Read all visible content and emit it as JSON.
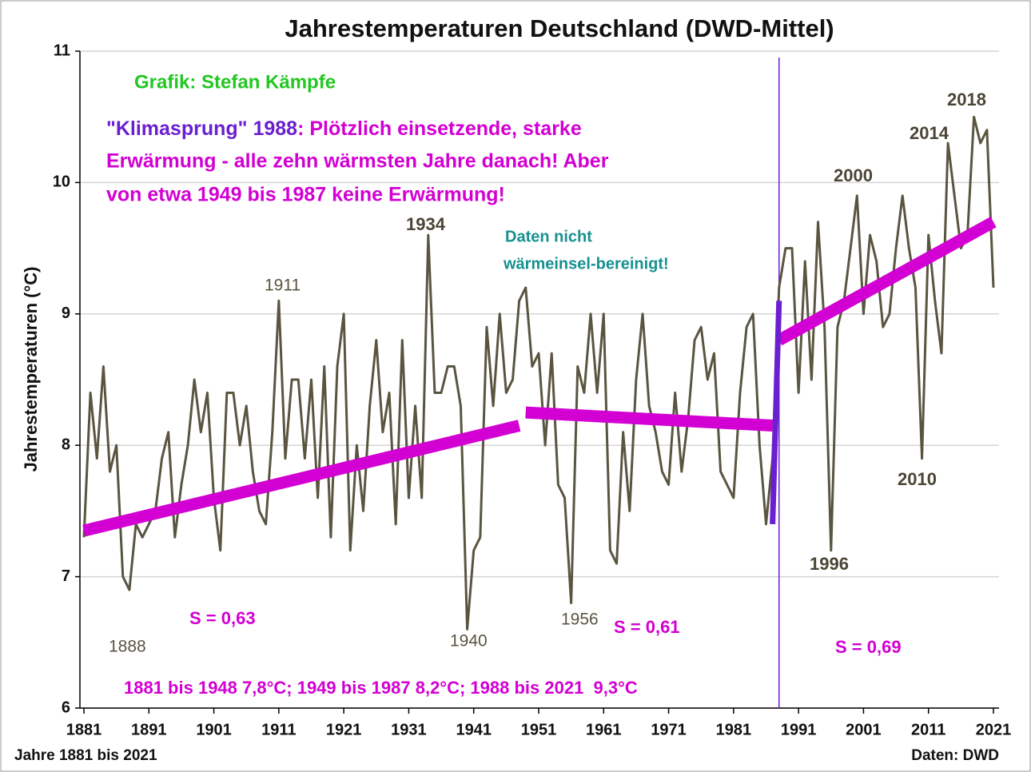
{
  "chart_data": {
    "type": "line",
    "title": "Jahrestemperaturen Deutschland (DWD-Mittel)",
    "ylabel": "Jahrestemperaturen (°C)",
    "xlabel": "Jahre 1881 bis 2021",
    "source": "Daten: DWD",
    "xlim": [
      1881,
      2021
    ],
    "ylim": [
      6,
      11
    ],
    "xticks": [
      1881,
      1891,
      1901,
      1911,
      1921,
      1931,
      1941,
      1951,
      1961,
      1971,
      1981,
      1991,
      2001,
      2011,
      2021
    ],
    "yticks": [
      6,
      7,
      8,
      9,
      10,
      11
    ],
    "grid": true,
    "x": [
      1881,
      1882,
      1883,
      1884,
      1885,
      1886,
      1887,
      1888,
      1889,
      1890,
      1891,
      1892,
      1893,
      1894,
      1895,
      1896,
      1897,
      1898,
      1899,
      1900,
      1901,
      1902,
      1903,
      1904,
      1905,
      1906,
      1907,
      1908,
      1909,
      1910,
      1911,
      1912,
      1913,
      1914,
      1915,
      1916,
      1917,
      1918,
      1919,
      1920,
      1921,
      1922,
      1923,
      1924,
      1925,
      1926,
      1927,
      1928,
      1929,
      1930,
      1931,
      1932,
      1933,
      1934,
      1935,
      1936,
      1937,
      1938,
      1939,
      1940,
      1941,
      1942,
      1943,
      1944,
      1945,
      1946,
      1947,
      1948,
      1949,
      1950,
      1951,
      1952,
      1953,
      1954,
      1955,
      1956,
      1957,
      1958,
      1959,
      1960,
      1961,
      1962,
      1963,
      1964,
      1965,
      1966,
      1967,
      1968,
      1969,
      1970,
      1971,
      1972,
      1973,
      1974,
      1975,
      1976,
      1977,
      1978,
      1979,
      1980,
      1981,
      1982,
      1983,
      1984,
      1985,
      1986,
      1987,
      1988,
      1989,
      1990,
      1991,
      1992,
      1993,
      1994,
      1995,
      1996,
      1997,
      1998,
      1999,
      2000,
      2001,
      2002,
      2003,
      2004,
      2005,
      2006,
      2007,
      2008,
      2009,
      2010,
      2011,
      2012,
      2013,
      2014,
      2015,
      2016,
      2017,
      2018,
      2019,
      2020,
      2021
    ],
    "series": [
      {
        "color": "#5a5540",
        "values": [
          7.3,
          8.4,
          7.9,
          8.6,
          7.8,
          8.0,
          7.0,
          6.9,
          7.4,
          7.3,
          7.4,
          7.5,
          7.9,
          8.1,
          7.3,
          7.7,
          8.0,
          8.5,
          8.1,
          8.4,
          7.6,
          7.2,
          8.4,
          8.4,
          8.0,
          8.3,
          7.8,
          7.5,
          7.4,
          8.1,
          9.1,
          7.9,
          8.5,
          8.5,
          7.9,
          8.5,
          7.6,
          8.6,
          7.3,
          8.6,
          9.0,
          7.2,
          8.0,
          7.5,
          8.3,
          8.8,
          8.1,
          8.4,
          7.4,
          8.8,
          7.6,
          8.3,
          7.6,
          9.6,
          8.4,
          8.4,
          8.6,
          8.6,
          8.3,
          6.6,
          7.2,
          7.3,
          8.9,
          8.3,
          9.0,
          8.4,
          8.5,
          9.1,
          9.2,
          8.6,
          8.7,
          8.0,
          8.7,
          7.7,
          7.6,
          6.8,
          8.6,
          8.4,
          9.0,
          8.4,
          9.0,
          7.2,
          7.1,
          8.1,
          7.5,
          8.5,
          9.0,
          8.3,
          8.1,
          7.8,
          7.7,
          8.4,
          7.8,
          8.2,
          8.8,
          8.9,
          8.5,
          8.7,
          7.8,
          7.7,
          7.6,
          8.4,
          8.9,
          9.0,
          8.0,
          7.4,
          7.9,
          9.2,
          9.5,
          9.5,
          8.4,
          9.4,
          8.5,
          9.7,
          8.9,
          7.2,
          8.9,
          9.1,
          9.5,
          9.9,
          9.0,
          9.6,
          9.4,
          8.9,
          9.0,
          9.5,
          9.9,
          9.5,
          9.2,
          7.9,
          9.6,
          9.1,
          8.7,
          10.3,
          9.9,
          9.5,
          9.6,
          10.5,
          10.3,
          10.4,
          9.2
        ]
      }
    ],
    "trend_lines": [
      {
        "color": "#d200d2",
        "x": [
          1881,
          1948
        ],
        "y": [
          7.35,
          8.15
        ]
      },
      {
        "color": "#d200d2",
        "x": [
          1949,
          1987
        ],
        "y": [
          8.25,
          8.15
        ]
      },
      {
        "color": "#d200d2",
        "x": [
          1988,
          2021
        ],
        "y": [
          8.8,
          9.7
        ]
      },
      {
        "color": "#6a1fd0",
        "x": [
          1987,
          1988
        ],
        "y": [
          7.4,
          9.1
        ]
      }
    ],
    "marker_year": 1988,
    "annotations": [
      {
        "text": "Grafik: Stefan Kämpfe",
        "color": "#22c722"
      },
      {
        "text": "\"Klimasprung\" 1988",
        "color": "#6a1fd0"
      },
      {
        "text": ": Plötzlich einsetzende, starke",
        "color": "#d200d2"
      },
      {
        "text": "Erwärmung - alle zehn wärmsten Jahre danach! Aber",
        "color": "#d200d2"
      },
      {
        "text": "von etwa 1949 bis 1987 keine Erwärmung!",
        "color": "#d200d2"
      },
      {
        "text": "Daten nicht",
        "color": "#169090"
      },
      {
        "text": "wärmeinsel-bereinigt!",
        "color": "#169090"
      },
      {
        "text": "S = 0,63",
        "color": "#d200d2"
      },
      {
        "text": "S = 0,61",
        "color": "#d200d2"
      },
      {
        "text": "S = 0,69",
        "color": "#d200d2"
      },
      {
        "text": "1881 bis 1948 7,8°C; 1949 bis 1987 8,2°C; 1988 bis 2021  9,3°C",
        "color": "#d200d2"
      },
      {
        "text": "1934",
        "color": "#4a4535"
      },
      {
        "text": "2000",
        "color": "#4a4535"
      },
      {
        "text": "2014",
        "color": "#4a4535"
      },
      {
        "text": "2018",
        "color": "#4a4535"
      },
      {
        "text": "2010",
        "color": "#4a4535"
      },
      {
        "text": "1996",
        "color": "#4a4535"
      },
      {
        "text": "1911",
        "color": "#5a5540"
      },
      {
        "text": "1888",
        "color": "#5a5540"
      },
      {
        "text": "1940",
        "color": "#5a5540"
      },
      {
        "text": "1956",
        "color": "#5a5540"
      }
    ]
  }
}
